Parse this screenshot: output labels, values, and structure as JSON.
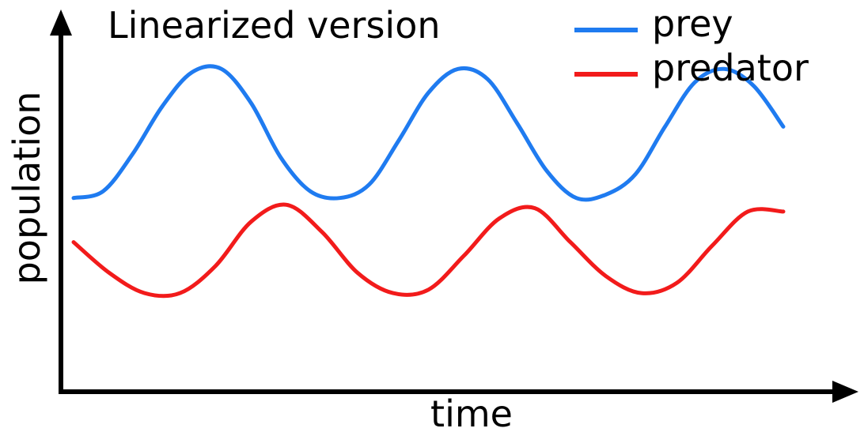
{
  "chart_data": {
    "type": "line",
    "title": "Linearized version",
    "xlabel": "time",
    "ylabel": "population",
    "xlim": [
      0,
      3
    ],
    "ylim": [
      0,
      1
    ],
    "grid": false,
    "axis_ticks": false,
    "legend_position": "top-right",
    "x": [
      0,
      0.1,
      0.2,
      0.3,
      0.4,
      0.5,
      0.6,
      0.7,
      0.8,
      0.9,
      1.0,
      1.1,
      1.2,
      1.3,
      1.4,
      1.5,
      1.6,
      1.7,
      1.8,
      1.9,
      2.0,
      2.1,
      2.2,
      2.3,
      2.4,
      2.5,
      2.6,
      2.7,
      2.8,
      2.9,
      3.0
    ],
    "series": [
      {
        "name": "prey",
        "color": "#1f7bf0",
        "values": [
          0.51,
          0.53,
          0.64,
          0.78,
          0.88,
          0.89,
          0.79,
          0.63,
          0.53,
          0.51,
          0.55,
          0.68,
          0.82,
          0.89,
          0.86,
          0.73,
          0.59,
          0.51,
          0.52,
          0.58,
          0.72,
          0.85,
          0.89,
          0.84,
          0.72
        ],
        "x": [
          0,
          0.125,
          0.25,
          0.375,
          0.5,
          0.625,
          0.75,
          0.875,
          1.0,
          1.125,
          1.25,
          1.375,
          1.5,
          1.625,
          1.75,
          1.875,
          2.0,
          2.125,
          2.25,
          2.375,
          2.5,
          2.625,
          2.75,
          2.875,
          3.0
        ]
      },
      {
        "name": "predator",
        "color": "#f21b1b",
        "values": [
          0.38,
          0.29,
          0.23,
          0.23,
          0.31,
          0.44,
          0.49,
          0.41,
          0.29,
          0.23,
          0.24,
          0.34,
          0.45,
          0.48,
          0.38,
          0.28,
          0.23,
          0.26,
          0.37,
          0.47,
          0.47
        ],
        "x": [
          0,
          0.15,
          0.3,
          0.45,
          0.6,
          0.75,
          0.9,
          1.05,
          1.2,
          1.35,
          1.5,
          1.65,
          1.8,
          1.95,
          2.1,
          2.25,
          2.4,
          2.55,
          2.7,
          2.85,
          3.0
        ]
      }
    ]
  }
}
